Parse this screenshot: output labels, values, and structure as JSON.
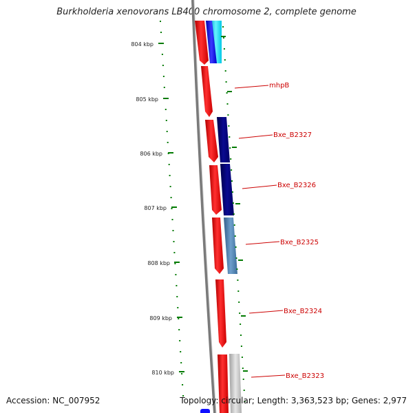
{
  "title": "Burkholderia xenovorans LB400 chromosome 2, complete genome",
  "accession": "Accession: NC_007952",
  "summary": "Topology: circular; Length: 3,363,523 bp; Genes: 2,977",
  "ticks": [
    {
      "label": "804 kbp",
      "kbp": 804
    },
    {
      "label": "805 kbp",
      "kbp": 805
    },
    {
      "label": "806 kbp",
      "kbp": 806
    },
    {
      "label": "807 kbp",
      "kbp": 807
    },
    {
      "label": "808 kbp",
      "kbp": 808
    },
    {
      "label": "809 kbp",
      "kbp": 809
    },
    {
      "label": "810 kbp",
      "kbp": 810
    }
  ],
  "gene_labels": [
    "mhpB",
    "Bxe_B2327",
    "Bxe_B2326",
    "Bxe_B2325",
    "Bxe_B2324",
    "Bxe_B2323"
  ],
  "colors": {
    "gene_forward": "#ff1a1a",
    "gene_navy": "#00007a",
    "gene_steel": "#4a7fb0",
    "gene_cyan": "#00e5ff",
    "gene_blue": "#1010ff",
    "gene_grey": "#c8c8c8",
    "backbone": "#7a7a7a",
    "tick": "#007a00",
    "label_line": "#cc0000"
  }
}
